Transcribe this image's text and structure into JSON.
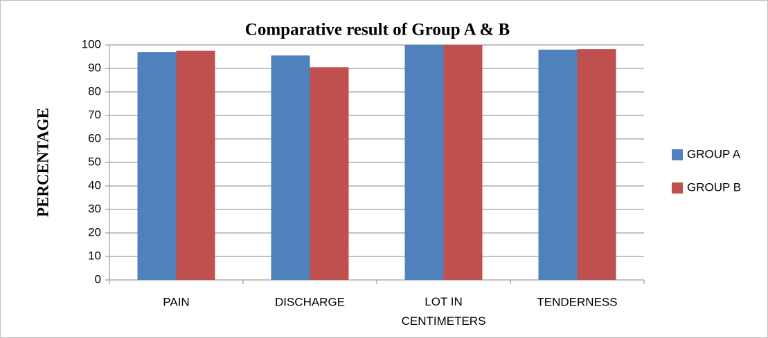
{
  "chart_data": {
    "type": "bar",
    "title": "Comparative result of Group A & B",
    "y_label": "PERCENTAGE",
    "categories": [
      "PAIN",
      "DISCHARGE",
      "LOT IN CENTIMETERS",
      "TENDERNESS"
    ],
    "series": [
      {
        "name": "GROUP A",
        "color": "#4f81bd",
        "values": [
          97,
          95.5,
          100,
          98
        ]
      },
      {
        "name": "GROUP B",
        "color": "#c0504d",
        "values": [
          97.5,
          90.5,
          100,
          98.2
        ]
      }
    ],
    "ylim": [
      0,
      100
    ],
    "yticks": [
      0,
      10,
      20,
      30,
      40,
      50,
      60,
      70,
      80,
      90,
      100
    ],
    "grid": true,
    "legend": "right"
  }
}
